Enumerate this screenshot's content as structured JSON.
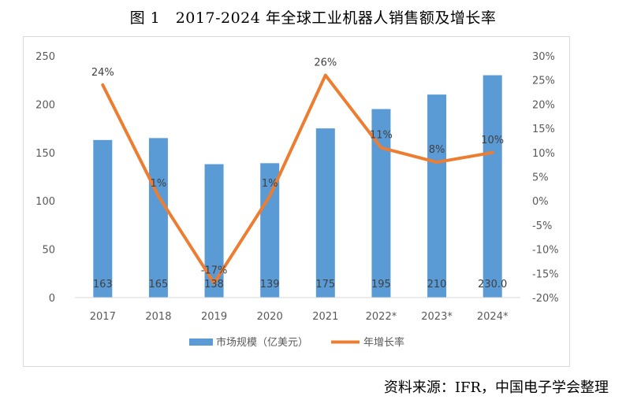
{
  "title": "图 1　2017-2024 年全球工业机器人销售额及增长率",
  "source": "资料来源：IFR，中国电子学会整理",
  "chart_data": {
    "type": "bar",
    "categories": [
      "2017",
      "2018",
      "2019",
      "2020",
      "2021",
      "2022*",
      "2023*",
      "2024*"
    ],
    "series": [
      {
        "name": "市场规模（亿美元）",
        "type": "bar",
        "axis": "left",
        "color": "#5b9bd5",
        "values": [
          163,
          165,
          138,
          139,
          175,
          195,
          210,
          230
        ],
        "labels": [
          "163",
          "165",
          "138",
          "139",
          "175",
          "195",
          "210",
          "230.0"
        ]
      },
      {
        "name": "年增长率",
        "type": "line",
        "axis": "right",
        "color": "#ed7d31",
        "values": [
          24,
          1,
          -17,
          1,
          26,
          11,
          8,
          10
        ],
        "labels": [
          "24%",
          "1%",
          "-17%",
          "1%",
          "26%",
          "11%",
          "8%",
          "10%"
        ]
      }
    ],
    "left_axis": {
      "min": 0,
      "max": 250,
      "ticks": [
        "0",
        "50",
        "100",
        "150",
        "200",
        "250"
      ]
    },
    "right_axis": {
      "min": -20,
      "max": 30,
      "ticks": [
        "-20%",
        "-15%",
        "-10%",
        "-5%",
        "0%",
        "5%",
        "10%",
        "15%",
        "20%",
        "25%",
        "30%"
      ]
    },
    "grid": false,
    "legend": "bottom"
  }
}
